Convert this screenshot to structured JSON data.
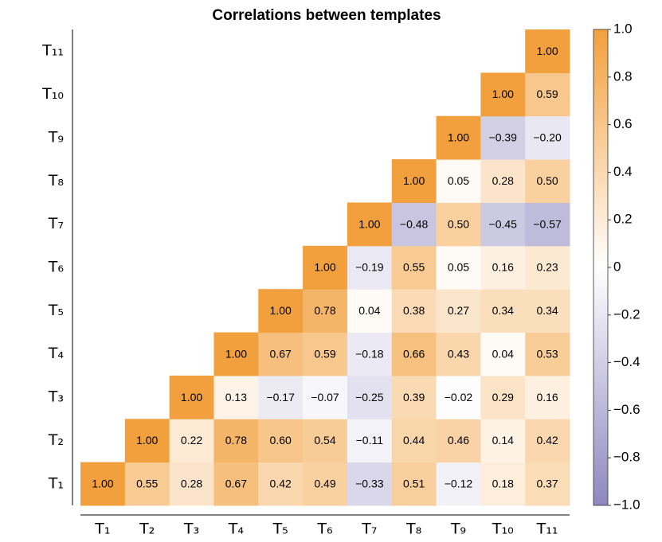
{
  "chart_data": {
    "type": "heatmap",
    "title": "Correlations between templates",
    "x_categories": [
      "T₁",
      "T₂",
      "T₃",
      "T₄",
      "T₅",
      "T₆",
      "T₇",
      "T₈",
      "T₉",
      "T₁₀",
      "T₁₁"
    ],
    "y_categories": [
      "T₁",
      "T₂",
      "T₃",
      "T₄",
      "T₅",
      "T₆",
      "T₇",
      "T₈",
      "T₉",
      "T₁₀",
      "T₁₁"
    ],
    "values": [
      [
        1,
        0.55,
        0.28,
        0.67,
        0.42,
        0.49,
        -0.33,
        0.51,
        -0.12,
        0.18,
        0.37
      ],
      [
        null,
        1,
        0.22,
        0.78,
        0.6,
        0.54,
        -0.11,
        0.44,
        0.46,
        0.14,
        0.42
      ],
      [
        null,
        null,
        1,
        0.13,
        -0.17,
        -0.07,
        -0.25,
        0.39,
        -0.02,
        0.29,
        0.16
      ],
      [
        null,
        null,
        null,
        1,
        0.67,
        0.59,
        -0.18,
        0.66,
        0.43,
        0.04,
        0.53
      ],
      [
        null,
        null,
        null,
        null,
        1,
        0.78,
        0.04,
        0.38,
        0.27,
        0.34,
        0.34
      ],
      [
        null,
        null,
        null,
        null,
        null,
        1,
        -0.19,
        0.55,
        0.05,
        0.16,
        0.23
      ],
      [
        null,
        null,
        null,
        null,
        null,
        null,
        1,
        -0.48,
        0.5,
        -0.45,
        -0.57
      ],
      [
        null,
        null,
        null,
        null,
        null,
        null,
        null,
        1,
        0.05,
        0.28,
        0.5
      ],
      [
        null,
        null,
        null,
        null,
        null,
        null,
        null,
        null,
        1,
        -0.39,
        -0.2
      ],
      [
        null,
        null,
        null,
        null,
        null,
        null,
        null,
        null,
        null,
        1,
        0.59
      ],
      [
        null,
        null,
        null,
        null,
        null,
        null,
        null,
        null,
        null,
        null,
        1
      ]
    ],
    "value_labels": [
      [
        "1.00",
        "0.55",
        "0.28",
        "0.67",
        "0.42",
        "0.49",
        "−0.33",
        "0.51",
        "−0.12",
        "0.18",
        "0.37"
      ],
      [
        null,
        "1.00",
        "0.22",
        "0.78",
        "0.60",
        "0.54",
        "−0.11",
        "0.44",
        "0.46",
        "0.14",
        "0.42"
      ],
      [
        null,
        null,
        "1.00",
        "0.13",
        "−0.17",
        "−0.07",
        "−0.25",
        "0.39",
        "−0.02",
        "0.29",
        "0.16"
      ],
      [
        null,
        null,
        null,
        "1.00",
        "0.67",
        "0.59",
        "−0.18",
        "0.66",
        "0.43",
        "0.04",
        "0.53"
      ],
      [
        null,
        null,
        null,
        null,
        "1.00",
        "0.78",
        "0.04",
        "0.38",
        "0.27",
        "0.34",
        "0.34"
      ],
      [
        null,
        null,
        null,
        null,
        null,
        "1.00",
        "−0.19",
        "0.55",
        "0.05",
        "0.16",
        "0.23"
      ],
      [
        null,
        null,
        null,
        null,
        null,
        null,
        "1.00",
        "−0.48",
        "0.50",
        "−0.45",
        "−0.57"
      ],
      [
        null,
        null,
        null,
        null,
        null,
        null,
        null,
        "1.00",
        "0.05",
        "0.28",
        "0.50"
      ],
      [
        null,
        null,
        null,
        null,
        null,
        null,
        null,
        null,
        "1.00",
        "−0.39",
        "−0.20"
      ],
      [
        null,
        null,
        null,
        null,
        null,
        null,
        null,
        null,
        null,
        "1.00",
        "0.59"
      ],
      [
        null,
        null,
        null,
        null,
        null,
        null,
        null,
        null,
        null,
        null,
        "1.00"
      ]
    ],
    "colors": [
      "#8e87bf",
      "#ffffff",
      "#f2a03d"
    ],
    "clim": [
      -1,
      1
    ],
    "cticks": [
      {
        "value": 1,
        "label": "1.0"
      },
      0.8,
      0.6,
      0.4,
      0.2,
      0,
      {
        "value": -0.2,
        "label": "−0.2"
      },
      {
        "value": -0.4,
        "label": "−0.4"
      },
      {
        "value": -0.6,
        "label": "−0.6"
      },
      {
        "value": -0.8,
        "label": "−0.8"
      },
      {
        "value": -1,
        "label": "−1.0"
      }
    ]
  }
}
